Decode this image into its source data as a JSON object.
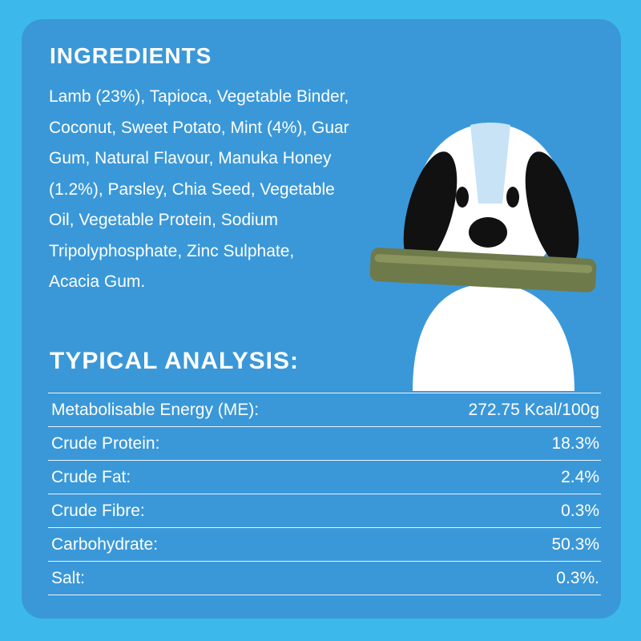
{
  "ingredients": {
    "title": "INGREDIENTS",
    "lines": [
      "Lamb (23%), Tapioca, Vegetable Binder,",
      "Coconut, Sweet Potato, Mint (4%), Guar",
      "Gum, Natural Flavour, Manuka Honey",
      "(1.2%), Parsley, Chia Seed, Vegetable",
      "Oil, Vegetable Protein, Sodium",
      "Tripolyphosphate, Zinc Sulphate,",
      "Acacia Gum."
    ]
  },
  "analysis": {
    "title": "TYPICAL ANALYSIS:",
    "rows": [
      [
        "Metabolisable Energy (ME):",
        "272.75 Kcal/100g"
      ],
      [
        "Crude Protein:",
        "18.3%"
      ],
      [
        "Crude Fat:",
        "2.4%"
      ],
      [
        "Crude Fibre:",
        "0.3%"
      ],
      [
        "Carbohydrate:",
        "50.3%"
      ],
      [
        "Salt:",
        "0.3%."
      ]
    ]
  }
}
